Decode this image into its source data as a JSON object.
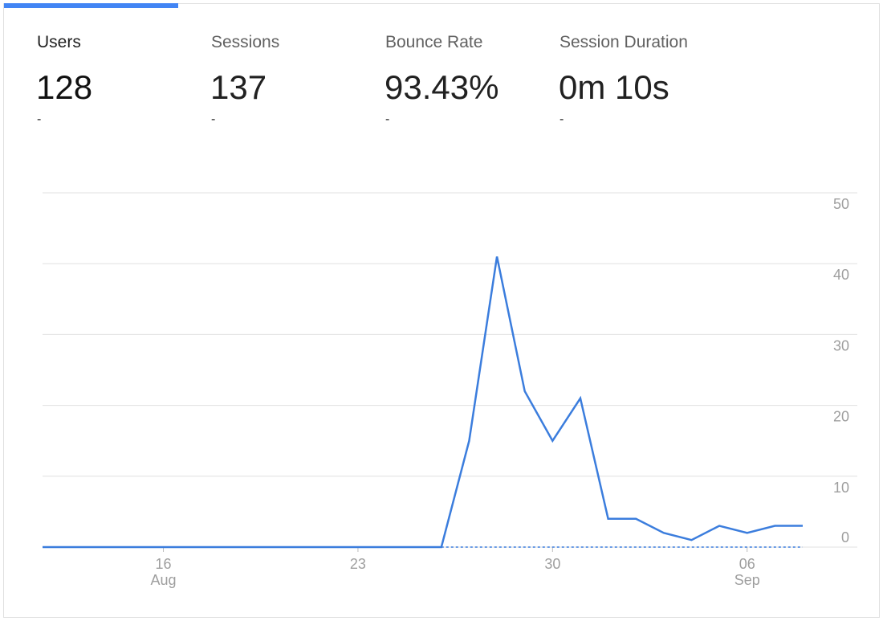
{
  "metrics": [
    {
      "label": "Users",
      "value": "128",
      "change": "-"
    },
    {
      "label": "Sessions",
      "value": "137",
      "change": "-"
    },
    {
      "label": "Bounce Rate",
      "value": "93.43%",
      "change": "-"
    },
    {
      "label": "Session Duration",
      "value": "0m 10s",
      "change": "-"
    }
  ],
  "selected_metric": 0,
  "chart_data": {
    "type": "line",
    "x": [
      "08-12",
      "08-13",
      "08-14",
      "08-15",
      "08-16",
      "08-17",
      "08-18",
      "08-19",
      "08-20",
      "08-21",
      "08-22",
      "08-23",
      "08-24",
      "08-25",
      "08-26",
      "08-27",
      "08-28",
      "08-29",
      "08-30",
      "08-31",
      "09-01",
      "09-02",
      "09-03",
      "09-04",
      "09-05",
      "09-06",
      "09-07",
      "09-08"
    ],
    "series": [
      {
        "name": "Users",
        "color": "#3b7ddd",
        "values": [
          0,
          0,
          0,
          0,
          0,
          0,
          0,
          0,
          0,
          0,
          0,
          0,
          0,
          0,
          0,
          15,
          41,
          22,
          15,
          21,
          4,
          4,
          2,
          1,
          3,
          2,
          3,
          3
        ]
      }
    ],
    "ylim": [
      0,
      50
    ],
    "yticks": [
      0,
      10,
      20,
      30,
      40,
      50
    ],
    "xticks": [
      {
        "value": "08-16",
        "label": "16",
        "month": "Aug"
      },
      {
        "value": "08-23",
        "label": "23"
      },
      {
        "value": "08-30",
        "label": "30"
      },
      {
        "value": "09-06",
        "label": "06",
        "month": "Sep"
      }
    ],
    "grid": true
  }
}
